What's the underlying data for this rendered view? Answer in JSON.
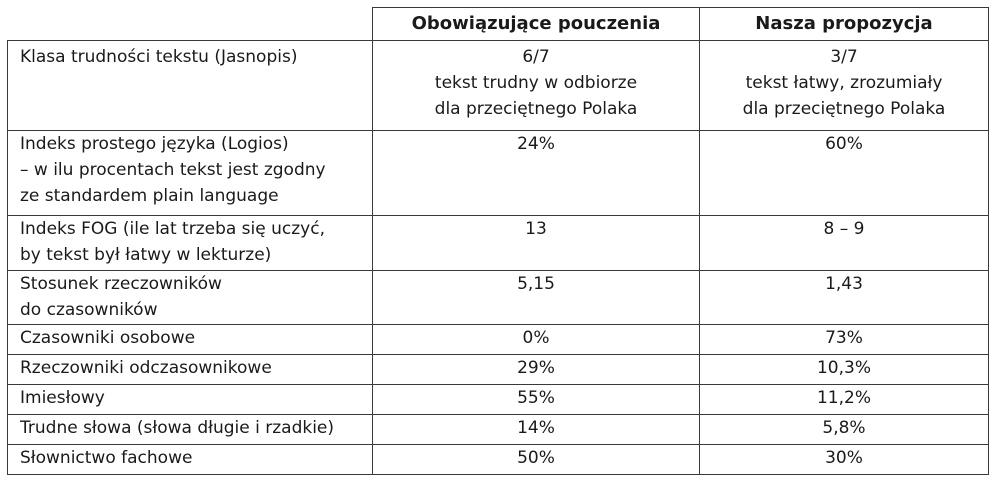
{
  "table": {
    "headers": {
      "col1": "",
      "col2": "Obowiązujące pouczenia",
      "col3": "Nasza propozycja"
    },
    "rows": [
      {
        "label": [
          "Klasa trudności tekstu (Jasnopis)"
        ],
        "current": [
          "6/7",
          "tekst trudny w odbiorze",
          "dla przeciętnego Polaka"
        ],
        "proposal": [
          "3/7",
          "tekst łatwy, zrozumiały",
          "dla przeciętnego Polaka"
        ]
      },
      {
        "label": [
          "Indeks prostego języka (Logios)",
          "– w ilu procentach tekst jest zgodny",
          "ze standardem plain language"
        ],
        "current": [
          "24%"
        ],
        "proposal": [
          "60%"
        ]
      },
      {
        "label": [
          "Indeks FOG (ile lat trzeba się uczyć,",
          "by tekst był łatwy w lekturze)"
        ],
        "current": [
          "13"
        ],
        "proposal": [
          "8 – 9"
        ]
      },
      {
        "label": [
          "Stosunek rzeczowników",
          "do czasowników"
        ],
        "current": [
          "5,15"
        ],
        "proposal": [
          "1,43"
        ]
      },
      {
        "label": [
          "Czasowniki osobowe"
        ],
        "current": [
          "0%"
        ],
        "proposal": [
          "73%"
        ]
      },
      {
        "label": [
          "Rzeczowniki odczasownikowe"
        ],
        "current": [
          "29%"
        ],
        "proposal": [
          "10,3%"
        ]
      },
      {
        "label": [
          "Imiesłowy"
        ],
        "current": [
          "55%"
        ],
        "proposal": [
          "11,2%"
        ]
      },
      {
        "label": [
          "Trudne słowa (słowa długie i rzadkie)"
        ],
        "current": [
          "14%"
        ],
        "proposal": [
          "5,8%"
        ]
      },
      {
        "label": [
          "Słownictwo fachowe"
        ],
        "current": [
          "50%"
        ],
        "proposal": [
          "30%"
        ]
      }
    ]
  }
}
